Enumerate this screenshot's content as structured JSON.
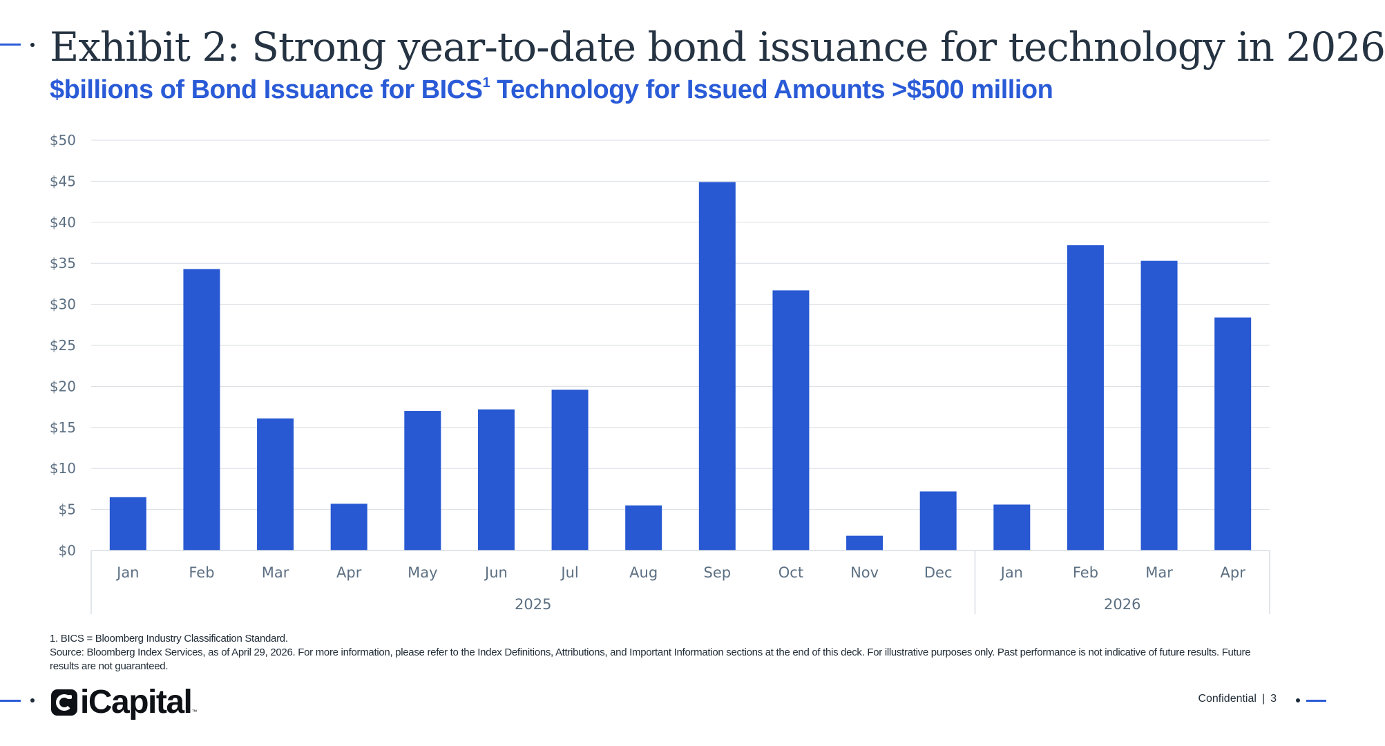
{
  "header": {
    "title": "Exhibit 2: Strong year-to-date bond issuance for technology in 2026",
    "subtitle_pre": "$billions of Bond Issuance for BICS",
    "subtitle_sup": "1",
    "subtitle_post": " Technology for Issued Amounts >$500 million"
  },
  "chart_data": {
    "type": "bar",
    "categories": [
      "Jan",
      "Feb",
      "Mar",
      "Apr",
      "May",
      "Jun",
      "Jul",
      "Aug",
      "Sep",
      "Oct",
      "Nov",
      "Dec",
      "Jan",
      "Feb",
      "Mar",
      "Apr"
    ],
    "category_groups": [
      {
        "label": "2025",
        "count": 12
      },
      {
        "label": "2026",
        "count": 4
      }
    ],
    "values": [
      6.5,
      34.3,
      16.1,
      5.7,
      17.0,
      17.2,
      19.6,
      5.5,
      44.9,
      31.7,
      1.8,
      7.2,
      5.6,
      37.2,
      35.3,
      28.4
    ],
    "yticks": [
      "$0",
      "$5",
      "$10",
      "$15",
      "$20",
      "$25",
      "$30",
      "$35",
      "$40",
      "$45",
      "$50"
    ],
    "ylim": [
      0,
      50
    ],
    "grid": true,
    "bar_color": "#2858d2"
  },
  "footnotes": {
    "note1": "1. BICS = Bloomberg Industry Classification Standard.",
    "source": "Source: Bloomberg Index Services, as of April 29, 2026. For more information, please refer to the Index Definitions, Attributions, and Important Information sections at the end of this deck. For illustrative purposes only. Past performance is not indicative of future results. Future results are not guaranteed."
  },
  "footer": {
    "logo_text": "iCapital",
    "logo_tm": "™",
    "confidential": "Confidential",
    "separator": "|",
    "page_number": "3"
  }
}
